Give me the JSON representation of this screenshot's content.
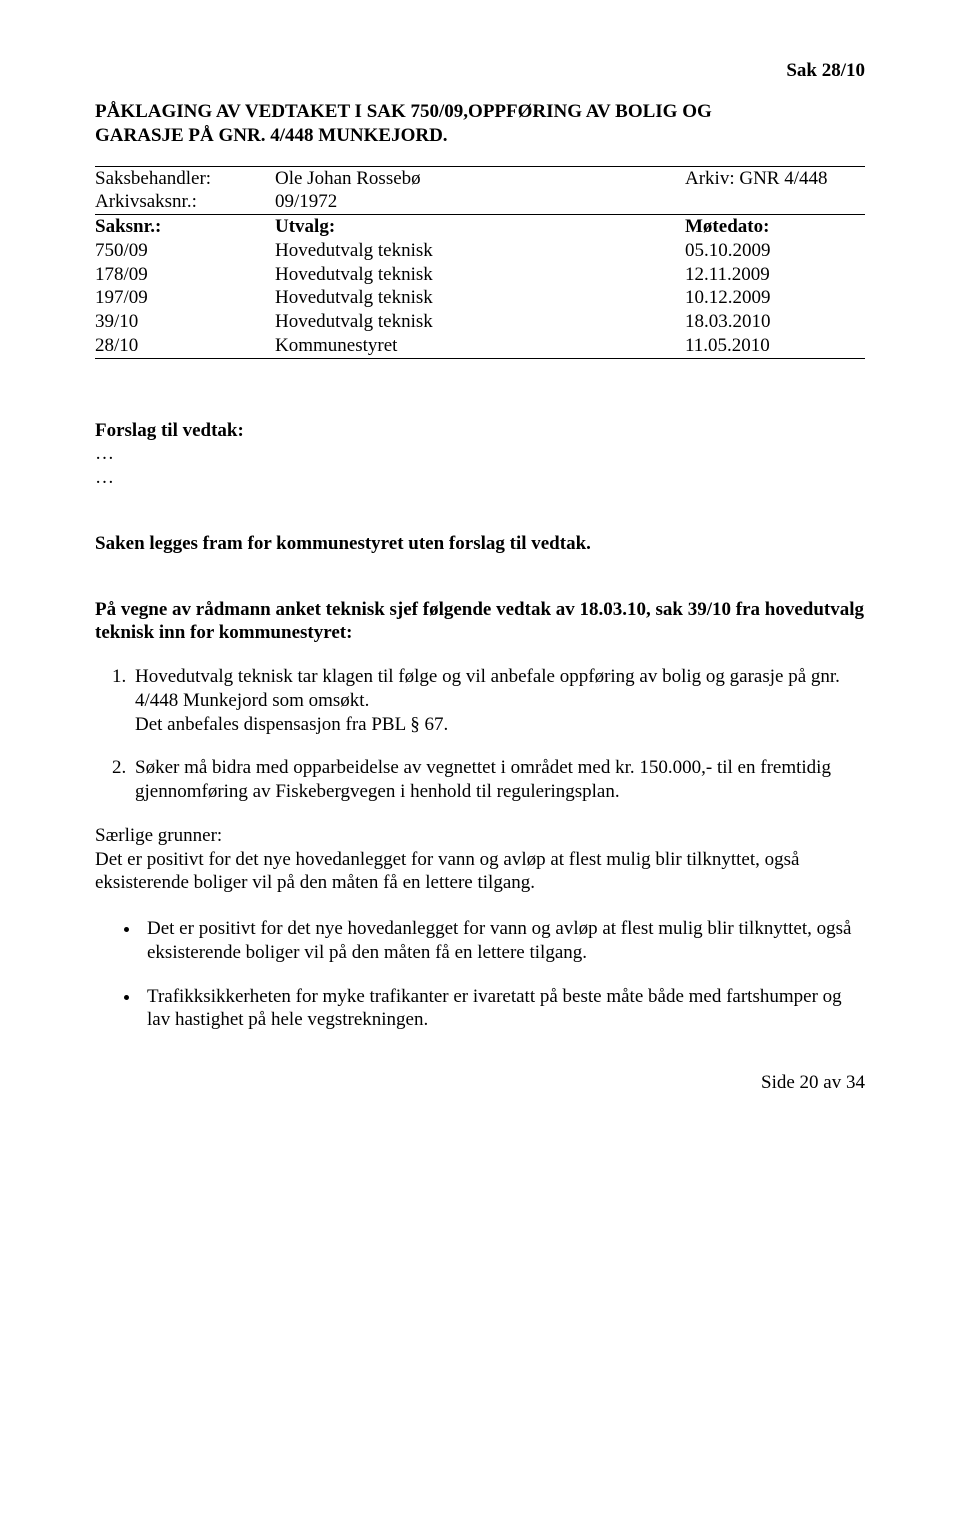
{
  "header": {
    "case_ref": "Sak  28/10"
  },
  "title": {
    "line1": "PÅKLAGING AV VEDTAKET I SAK 750/09,OPPFØRING AV BOLIG OG",
    "line2": "GARASJE PÅ GNR. 4/448 MUNKEJORD."
  },
  "meta": {
    "saksbehandler_label": "Saksbehandler:",
    "saksbehandler_value": "Ole Johan Rossebø",
    "arkiv_label": "Arkiv: GNR 4/448",
    "arkivsaksnr_label": "Arkivsaksnr.:",
    "arkivsaksnr_value": "09/1972",
    "saksnr_label": "Saksnr.:",
    "utvalg_label": "Utvalg:",
    "motedato_label": "Møtedato:",
    "rows": [
      {
        "nr": "750/09",
        "utvalg": "Hovedutvalg teknisk",
        "dato": "05.10.2009"
      },
      {
        "nr": "178/09",
        "utvalg": "Hovedutvalg teknisk",
        "dato": "12.11.2009"
      },
      {
        "nr": "197/09",
        "utvalg": "Hovedutvalg teknisk",
        "dato": "10.12.2009"
      },
      {
        "nr": "39/10",
        "utvalg": "Hovedutvalg teknisk",
        "dato": "18.03.2010"
      },
      {
        "nr": "28/10",
        "utvalg": "Kommunestyret",
        "dato": "11.05.2010"
      }
    ]
  },
  "forslag": {
    "heading": "Forslag til vedtak:",
    "dots1": "…",
    "dots2": "…"
  },
  "body": {
    "saken_legges": "Saken legges fram for kommunestyret uten forslag til vedtak.",
    "anket_heading": "På vegne av rådmann anket teknisk sjef følgende vedtak av 18.03.10, sak 39/10 fra hovedutvalg teknisk inn for kommunestyret:",
    "num1": "Hovedutvalg teknisk tar klagen til følge og vil anbefale oppføring av bolig og garasje på gnr. 4/448 Munkejord som omsøkt.\nDet anbefales dispensasjon fra PBL § 67.",
    "num2": "Søker må bidra med opparbeidelse av vegnettet i området med kr. 150.000,- til en fremtidig gjennomføring av Fiskebergvegen i henhold  til reguleringsplan.",
    "saerlige_label": "Særlige grunner:",
    "saerlige_text": "Det er positivt for det nye hovedanlegget for vann og avløp at flest mulig blir tilknyttet, også eksisterende boliger vil på den måten få en lettere tilgang.",
    "bullet1": "Det er positivt for det nye hovedanlegget for vann og avløp at flest mulig blir tilknyttet, også eksisterende boliger vil på den måten få en lettere tilgang.",
    "bullet2": "Trafikksikkerheten for myke trafikanter er ivaretatt på beste måte både med fartshumper og lav hastighet på hele vegstrekningen."
  },
  "footer": {
    "page": "Side 20 av 34"
  }
}
